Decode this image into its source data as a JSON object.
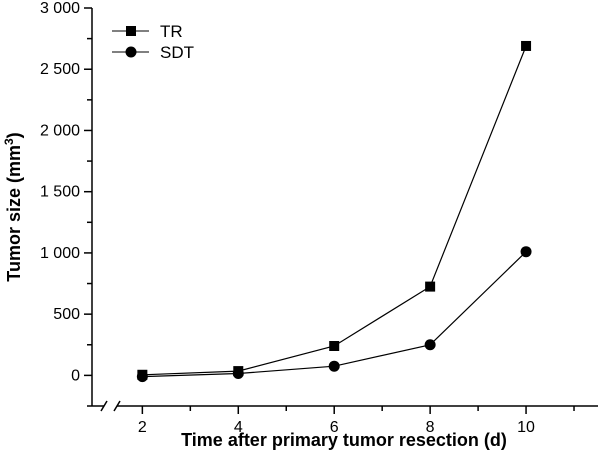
{
  "chart_data": {
    "type": "line",
    "title": "",
    "xlabel": "Time after primary tumor resection (d)",
    "ylabel_main": "Tumor size (mm",
    "ylabel_sup": "3",
    "ylabel_close": ")",
    "x": [
      2,
      4,
      6,
      8,
      10
    ],
    "xlim": [
      0.95,
      11.5
    ],
    "ylim": [
      -250,
      3000
    ],
    "x_ticks": [
      2,
      4,
      6,
      8,
      10
    ],
    "x_tick_labels": [
      "2",
      "4",
      "6",
      "8",
      "10"
    ],
    "y_ticks": [
      0,
      500,
      1000,
      1500,
      2000,
      2500,
      3000
    ],
    "y_tick_labels": [
      "0",
      "500",
      "1 000",
      "1 500",
      "2 000",
      "2 500",
      "3 000"
    ],
    "x_axis_break": true,
    "grid": false,
    "legend_position": "top-left",
    "series": [
      {
        "name": "TR",
        "marker": "square",
        "color": "#000000",
        "values": [
          5,
          35,
          240,
          725,
          2690
        ]
      },
      {
        "name": "SDT",
        "marker": "circle",
        "color": "#000000",
        "values": [
          -10,
          15,
          75,
          250,
          1010
        ]
      }
    ]
  }
}
